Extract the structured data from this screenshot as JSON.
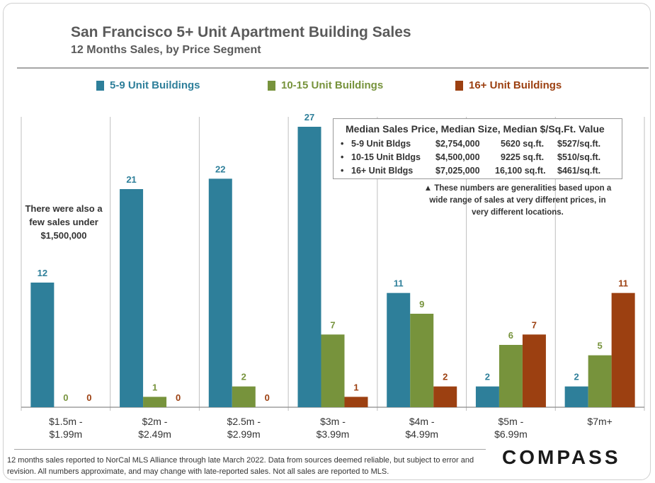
{
  "colors": {
    "s1": "#2e7f9a",
    "s2": "#77933c",
    "s3": "#9c4011",
    "grid": "#bfbfbf"
  },
  "chart_data": {
    "type": "bar",
    "title": "San Francisco 5+ Unit Apartment Building Sales",
    "subtitle": "12 Months Sales, by Price Segment",
    "categories": [
      [
        "$1.5m -",
        "$1.99m"
      ],
      [
        "$2m -",
        "$2.49m"
      ],
      [
        "$2.5m -",
        "$2.99m"
      ],
      [
        "$3m -",
        "$3.99m"
      ],
      [
        "$4m -",
        "$4.99m"
      ],
      [
        "$5m -",
        "$6.99m"
      ],
      [
        "$7m+",
        ""
      ]
    ],
    "series": [
      {
        "name": "5-9 Unit Buildings",
        "color": "#2e7f9a",
        "values": [
          12,
          21,
          22,
          27,
          11,
          2,
          2
        ]
      },
      {
        "name": "10-15 Unit Buildings",
        "color": "#77933c",
        "values": [
          0,
          1,
          2,
          7,
          9,
          6,
          5
        ]
      },
      {
        "name": "16+ Unit Buildings",
        "color": "#9c4011",
        "values": [
          0,
          0,
          0,
          1,
          2,
          7,
          11
        ]
      }
    ],
    "ylim": [
      0,
      28
    ],
    "legend": "top"
  },
  "note": "There were also a few sales under $1,500,000",
  "info": {
    "title": "Median Sales Price, Median Size, Median $/Sq.Ft. Value",
    "rows": [
      {
        "bullet": "•",
        "type": "5-9 Unit Bldgs",
        "price": "$2,754,000",
        "size": "5620 sq.ft.",
        "psf": "$527/sq.ft."
      },
      {
        "bullet": "•",
        "type": "10-15 Unit Bldgs",
        "price": "$4,500,000",
        "size": "9225 sq.ft.",
        "psf": "$510/sq.ft."
      },
      {
        "bullet": "•",
        "type": "16+ Unit Bldgs",
        "price": "$7,025,000",
        "size": "16,100 sq.ft.",
        "psf": "$461/sq.ft."
      }
    ],
    "caveat": "▲ These numbers are generalities based upon a wide range of sales at very different prices, in very different locations."
  },
  "footnote": "12 months sales reported to NorCal MLS Alliance through late March 2022. Data from sources deemed reliable, but subject to error and revision. All numbers approximate, and may change with late-reported sales. Not all sales are reported to MLS.",
  "logo": "COMPASS"
}
